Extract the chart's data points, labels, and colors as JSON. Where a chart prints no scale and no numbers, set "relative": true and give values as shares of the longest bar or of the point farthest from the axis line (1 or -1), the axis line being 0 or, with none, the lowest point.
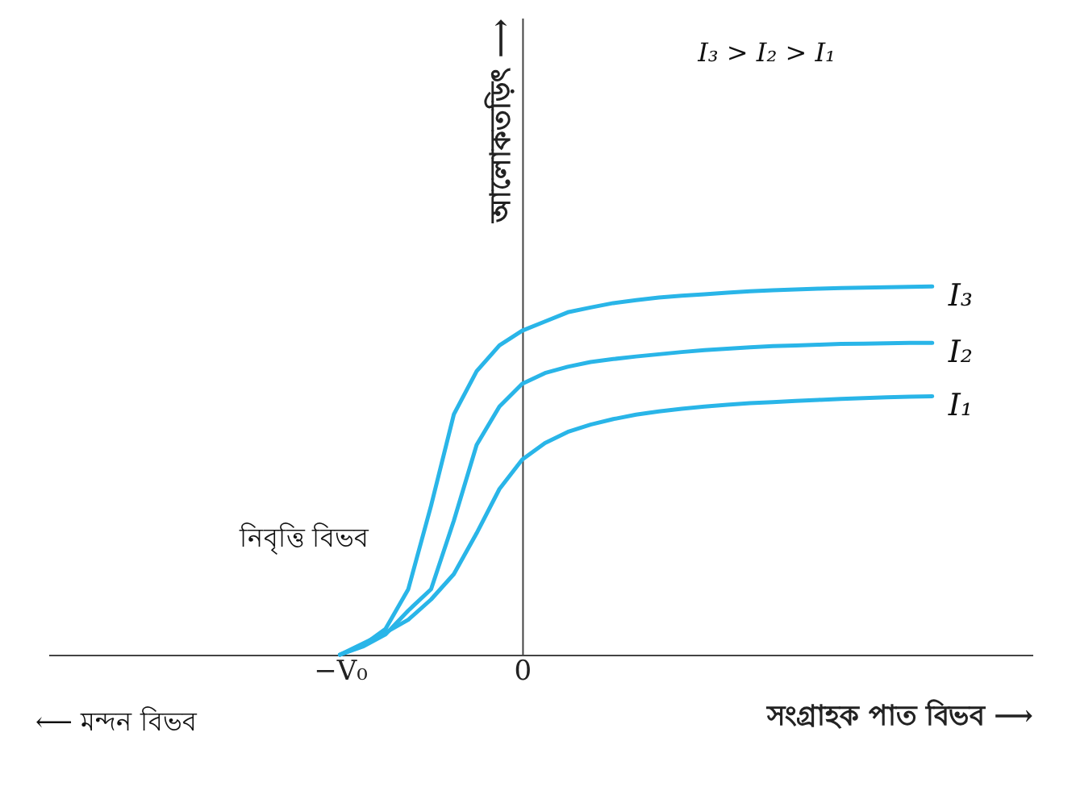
{
  "chart_data": {
    "type": "line",
    "relative": true,
    "xlabel": "সংগ্রাহক পাত বিভব ⟶",
    "ylabel": "আলোকতড়িৎ ⟶",
    "legend": false,
    "marker": "none",
    "line_style": "solid",
    "categories": [
      "−V₀",
      null,
      null,
      null,
      null,
      null,
      null,
      null,
      "0",
      null,
      null,
      null,
      null,
      null,
      null,
      null,
      null,
      null,
      null,
      null,
      null,
      null,
      null,
      null,
      null,
      null,
      null
    ],
    "annotations": [
      "নিবৃত্তি বিভব",
      "I₃ > I₂ > I₁",
      "⟵ মন্দন বিভব"
    ],
    "series": [
      {
        "name": "I₃",
        "color": "#29b5e8",
        "values": [
          0,
          0.025,
          0.07,
          0.178,
          0.405,
          0.653,
          0.77,
          0.84,
          0.88,
          0.905,
          0.93,
          0.943,
          0.955,
          0.963,
          0.97,
          0.975,
          0.979,
          0.983,
          0.987,
          0.99,
          0.992,
          0.994,
          0.996,
          0.997,
          0.998,
          0.999,
          1
        ]
      },
      {
        "name": "I₂",
        "color": "#29b5e8",
        "values": [
          0,
          0.022,
          0.055,
          0.12,
          0.178,
          0.364,
          0.57,
          0.674,
          0.736,
          0.765,
          0.782,
          0.795,
          0.803,
          0.81,
          0.816,
          0.822,
          0.827,
          0.831,
          0.835,
          0.838,
          0.84,
          0.842,
          0.844,
          0.845,
          0.846,
          0.847,
          0.847
        ]
      },
      {
        "name": "I₁",
        "color": "#29b5e8",
        "values": [
          0,
          0.03,
          0.06,
          0.095,
          0.15,
          0.219,
          0.33,
          0.45,
          0.53,
          0.575,
          0.605,
          0.625,
          0.64,
          0.652,
          0.661,
          0.668,
          0.674,
          0.679,
          0.683,
          0.686,
          0.689,
          0.692,
          0.695,
          0.697,
          0.699,
          0.701,
          0.702
        ]
      }
    ]
  }
}
